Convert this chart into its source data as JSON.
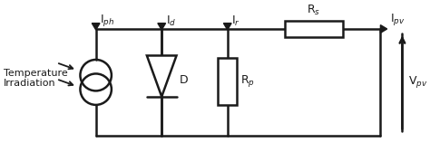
{
  "bg_color": "#ffffff",
  "line_color": "#1a1a1a",
  "lw": 1.8,
  "fig_width": 4.74,
  "fig_height": 1.68,
  "dpi": 100,
  "labels": {
    "temperature": "Temperature\nIrradiation",
    "Iph": "I$_{ph}$",
    "Id": "I$_{d}$",
    "Ir": "I$_{r}$",
    "D": "D",
    "Rs": "R$_{s}$",
    "Rp": "R$_{p}$",
    "Ipv": "I$_{pv}$",
    "Vpv": "V$_{pv}$"
  },
  "font_size": 9
}
